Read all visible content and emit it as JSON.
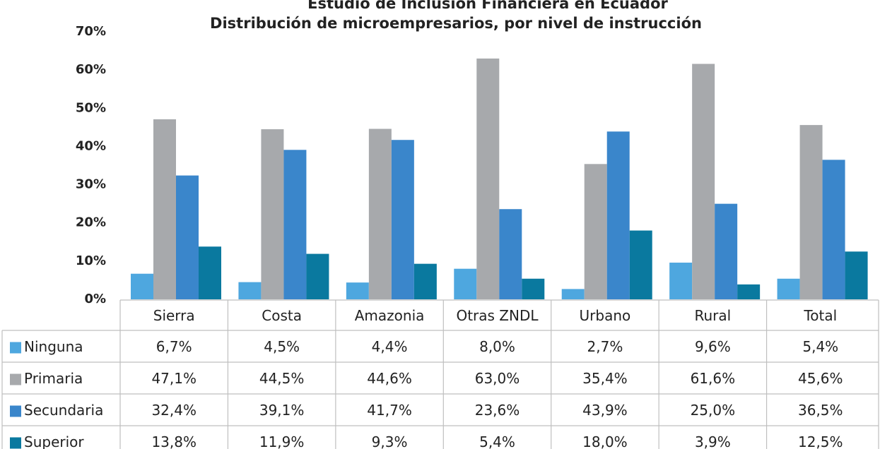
{
  "chart_data": {
    "type": "bar",
    "title": "Estudio de Inclusión Financiera en Ecuador",
    "subtitle": "Distribución de microempresarios, por nivel de instrucción",
    "categories": [
      "Sierra",
      "Costa",
      "Amazonia",
      "Otras ZNDL",
      "Urbano",
      "Rural",
      "Total"
    ],
    "series": [
      {
        "name": "Ninguna",
        "color": "#4ea7df",
        "values": [
          6.7,
          4.5,
          4.4,
          8.0,
          2.7,
          9.6,
          5.4
        ],
        "value_labels": [
          "6,7%",
          "4,5%",
          "4,4%",
          "8,0%",
          "2,7%",
          "9,6%",
          "5,4%"
        ]
      },
      {
        "name": "Primaria",
        "color": "#a7a9ac",
        "values": [
          47.1,
          44.5,
          44.6,
          63.0,
          35.4,
          61.6,
          45.6
        ],
        "value_labels": [
          "47,1%",
          "44,5%",
          "44,6%",
          "63,0%",
          "35,4%",
          "61,6%",
          "45,6%"
        ]
      },
      {
        "name": "Secundaria",
        "color": "#3a86cb",
        "values": [
          32.4,
          39.1,
          41.7,
          23.6,
          43.9,
          25.0,
          36.5
        ],
        "value_labels": [
          "32,4%",
          "39,1%",
          "41,7%",
          "23,6%",
          "43,9%",
          "25,0%",
          "36,5%"
        ]
      },
      {
        "name": "Superior",
        "color": "#0a799f",
        "values": [
          13.8,
          11.9,
          9.3,
          5.4,
          18.0,
          3.9,
          12.5
        ],
        "value_labels": [
          "13,8%",
          "11,9%",
          "9,3%",
          "5,4%",
          "18,0%",
          "3,9%",
          "12,5%"
        ]
      }
    ],
    "ylim": [
      0,
      70
    ],
    "yticks": [
      {
        "value": 0,
        "label": "0%"
      },
      {
        "value": 10,
        "label": "10%"
      },
      {
        "value": 20,
        "label": "20%"
      },
      {
        "value": 30,
        "label": "30%"
      },
      {
        "value": 40,
        "label": "40%"
      },
      {
        "value": 50,
        "label": "50%"
      },
      {
        "value": 60,
        "label": "60%"
      },
      {
        "value": 70,
        "label": "70%"
      }
    ]
  }
}
